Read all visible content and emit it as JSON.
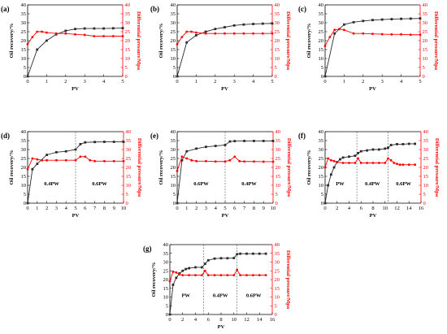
{
  "colors": {
    "recovery": "#2b2b2b",
    "pressure": "#ff0000",
    "divider": "#555555"
  },
  "chart_data": [
    {
      "type": "line",
      "panel_label": "(a)",
      "xlabel": "PV",
      "ylabel": "Oil recovery/%",
      "y2label": "Differential pressure/Mpa",
      "xlim": [
        0,
        5
      ],
      "xticks": [
        0,
        1,
        2,
        3,
        4,
        5
      ],
      "ylim": [
        0,
        40
      ],
      "yticks": [
        0,
        5,
        10,
        15,
        20,
        25,
        30,
        35,
        40
      ],
      "y2lim": [
        0,
        40
      ],
      "y2ticks": [
        0,
        5,
        10,
        15,
        20,
        25,
        30,
        35,
        40
      ],
      "dividers": [],
      "stage_labels": [],
      "series": [
        {
          "axis": "left",
          "color": "#2b2b2b",
          "marker": "square",
          "x": [
            0,
            0.5,
            1,
            1.5,
            2,
            2.5,
            3,
            3.5,
            4,
            4.5,
            5
          ],
          "y": [
            0,
            15,
            20,
            23.5,
            25.5,
            26.5,
            26.8,
            26.8,
            26.8,
            26.9,
            27
          ]
        },
        {
          "axis": "right",
          "color": "#ff0000",
          "marker": "circle",
          "x": [
            0,
            0.25,
            0.5,
            0.75,
            1,
            1.5,
            2,
            2.5,
            3,
            3.5,
            4,
            4.5,
            5
          ],
          "y": [
            18,
            22,
            25,
            25,
            24.5,
            24,
            24,
            23.5,
            23.2,
            22.5,
            22.5,
            22.5,
            22.5
          ]
        }
      ]
    },
    {
      "type": "line",
      "panel_label": "(b)",
      "xlabel": "PV",
      "ylabel": "Oil recovery/%",
      "y2label": "Differential pressure/Mpa",
      "xlim": [
        0,
        5
      ],
      "xticks": [
        0,
        1,
        2,
        3,
        4,
        5
      ],
      "ylim": [
        0,
        40
      ],
      "yticks": [
        0,
        5,
        10,
        15,
        20,
        25,
        30,
        35,
        40
      ],
      "y2lim": [
        0,
        40
      ],
      "y2ticks": [
        0,
        5,
        10,
        15,
        20,
        25,
        30,
        35,
        40
      ],
      "dividers": [],
      "stage_labels": [],
      "series": [
        {
          "axis": "left",
          "color": "#2b2b2b",
          "marker": "square",
          "x": [
            0,
            0.5,
            1,
            1.5,
            2,
            2.5,
            3,
            3.5,
            4,
            4.5,
            5
          ],
          "y": [
            0,
            19,
            23,
            25,
            26.5,
            27.5,
            28.5,
            29,
            29.3,
            29.5,
            29.6
          ]
        },
        {
          "axis": "right",
          "color": "#ff0000",
          "marker": "circle",
          "x": [
            0,
            0.25,
            0.5,
            0.75,
            1,
            1.5,
            2,
            2.5,
            3,
            3.5,
            4,
            4.5,
            5
          ],
          "y": [
            18,
            22,
            25,
            25,
            24.5,
            24,
            24,
            24,
            24,
            24,
            24,
            24,
            24
          ]
        }
      ]
    },
    {
      "type": "line",
      "panel_label": "(c)",
      "xlabel": "PV",
      "ylabel": "Oil recovery/%",
      "y2label": "Differential pressure/Mpa",
      "xlim": [
        0,
        5
      ],
      "xticks": [
        0,
        1,
        2,
        3,
        4,
        5
      ],
      "ylim": [
        0,
        40
      ],
      "yticks": [
        0,
        5,
        10,
        15,
        20,
        25,
        30,
        35,
        40
      ],
      "y2lim": [
        0,
        40
      ],
      "y2ticks": [
        0,
        5,
        10,
        15,
        20,
        25,
        30,
        35,
        40
      ],
      "dividers": [],
      "stage_labels": [],
      "series": [
        {
          "axis": "left",
          "color": "#2b2b2b",
          "marker": "square",
          "x": [
            0,
            0.5,
            1,
            1.5,
            2,
            2.5,
            3,
            3.5,
            4,
            4.5,
            5
          ],
          "y": [
            0,
            24,
            29,
            30.3,
            31,
            31.5,
            31.8,
            32,
            32.2,
            32.3,
            32.4
          ]
        },
        {
          "axis": "right",
          "color": "#ff0000",
          "marker": "circle",
          "x": [
            0,
            0.25,
            0.5,
            0.75,
            1,
            1.5,
            2,
            2.5,
            3,
            3.5,
            4,
            4.5,
            5
          ],
          "y": [
            17,
            22,
            26,
            26.5,
            26,
            24,
            24,
            23.8,
            23.6,
            23.5,
            23.5,
            23.3,
            23.3
          ]
        }
      ]
    },
    {
      "type": "line",
      "panel_label": "(d)",
      "xlabel": "PV",
      "ylabel": "Oil recovery/%",
      "y2label": "Differential pressure/Mpa",
      "xlim": [
        0,
        10
      ],
      "xticks": [
        0,
        1,
        2,
        3,
        4,
        5,
        6,
        7,
        8,
        9,
        10
      ],
      "ylim": [
        0,
        40
      ],
      "yticks": [
        0,
        5,
        10,
        15,
        20,
        25,
        30,
        35,
        40
      ],
      "y2lim": [
        0,
        40
      ],
      "y2ticks": [
        0,
        5,
        10,
        15,
        20,
        25,
        30,
        35,
        40
      ],
      "dividers": [
        5
      ],
      "stage_labels": [
        {
          "text": "0.4PW",
          "x": 2.5,
          "y": 10
        },
        {
          "text": "0.6PW",
          "x": 7.5,
          "y": 10
        }
      ],
      "series": [
        {
          "axis": "left",
          "color": "#2b2b2b",
          "marker": "square",
          "x": [
            0,
            0.5,
            1,
            2,
            3,
            4,
            5,
            5.5,
            6,
            7,
            8,
            9,
            10
          ],
          "y": [
            0,
            19,
            22,
            27,
            28.5,
            29,
            30,
            33,
            34,
            34.2,
            34.3,
            34.3,
            34.3
          ]
        },
        {
          "axis": "right",
          "color": "#ff0000",
          "marker": "circle",
          "x": [
            0,
            0.5,
            1,
            1.5,
            2,
            3,
            4,
            5,
            5.5,
            6,
            6.5,
            7,
            8,
            9,
            10
          ],
          "y": [
            19,
            25,
            24.5,
            24,
            24,
            24,
            24,
            24,
            26,
            26,
            24,
            23.5,
            23.5,
            23.5,
            23.5
          ]
        }
      ]
    },
    {
      "type": "line",
      "panel_label": "(e)",
      "xlabel": "PV",
      "ylabel": "Oil recovery/%",
      "y2label": "Differential pressure/Mpa",
      "xlim": [
        0,
        10
      ],
      "xticks": [
        0,
        1,
        2,
        3,
        4,
        5,
        6,
        7,
        8,
        9,
        10
      ],
      "ylim": [
        0,
        40
      ],
      "yticks": [
        0,
        5,
        10,
        15,
        20,
        25,
        30,
        35,
        40
      ],
      "y2lim": [
        0,
        40
      ],
      "y2ticks": [
        0,
        5,
        10,
        15,
        20,
        25,
        30,
        35,
        40
      ],
      "dividers": [
        5
      ],
      "stage_labels": [
        {
          "text": "0.6PW",
          "x": 2.5,
          "y": 10
        },
        {
          "text": "0.4PW",
          "x": 7.5,
          "y": 10
        }
      ],
      "series": [
        {
          "axis": "left",
          "color": "#2b2b2b",
          "marker": "square",
          "x": [
            0,
            0.5,
            1,
            2,
            3,
            4,
            5,
            5.5,
            6,
            7,
            8,
            9,
            10
          ],
          "y": [
            0,
            24,
            29,
            30.5,
            31.5,
            32,
            32.5,
            34.5,
            34.7,
            34.8,
            34.8,
            34.8,
            34.8
          ]
        },
        {
          "axis": "right",
          "color": "#ff0000",
          "marker": "circle",
          "x": [
            0,
            0.5,
            1,
            1.5,
            2,
            3,
            4,
            5,
            5.5,
            6,
            6.5,
            7,
            8,
            9,
            10
          ],
          "y": [
            18,
            26,
            25,
            24,
            23.5,
            23.5,
            23.3,
            23.3,
            24,
            26,
            23.5,
            23.3,
            23.3,
            23.2,
            23.2
          ]
        }
      ]
    },
    {
      "type": "line",
      "panel_label": "(f)",
      "xlabel": "PV",
      "ylabel": "Oil recovery/%",
      "y2label": "Differential pressure/Mpa",
      "xlim": [
        0,
        16
      ],
      "xticks": [
        0,
        2,
        4,
        6,
        8,
        10,
        12,
        14,
        16
      ],
      "ylim": [
        0,
        40
      ],
      "yticks": [
        0,
        5,
        10,
        15,
        20,
        25,
        30,
        35,
        40
      ],
      "y2lim": [
        0,
        40
      ],
      "y2ticks": [
        0,
        5,
        10,
        15,
        20,
        25,
        30,
        35,
        40
      ],
      "dividers": [
        5.3,
        10.5
      ],
      "stage_labels": [
        {
          "text": "PW",
          "x": 2.5,
          "y": 10
        },
        {
          "text": "0.4PW",
          "x": 7.9,
          "y": 10
        },
        {
          "text": "0.6PW",
          "x": 13.1,
          "y": 10
        }
      ],
      "series": [
        {
          "axis": "left",
          "color": "#2b2b2b",
          "marker": "square",
          "x": [
            0,
            0.5,
            1,
            1.5,
            2,
            2.5,
            3,
            4,
            5,
            5.5,
            6,
            7,
            8,
            9,
            10,
            10.5,
            11,
            12,
            13,
            14,
            15
          ],
          "y": [
            0,
            10,
            16,
            20,
            23,
            24.5,
            25.5,
            26,
            26.5,
            28,
            29,
            29.5,
            30,
            30,
            30.5,
            31,
            32.5,
            33,
            33,
            33.2,
            33.2
          ]
        },
        {
          "axis": "right",
          "color": "#ff0000",
          "marker": "circle",
          "x": [
            0,
            0.5,
            1,
            1.5,
            2,
            3,
            4,
            5,
            5.5,
            6,
            7,
            8,
            9,
            10,
            10.5,
            11,
            11.5,
            12,
            12.5,
            13,
            14,
            15
          ],
          "y": [
            20,
            25,
            24,
            23.5,
            23,
            22.5,
            22.5,
            22.5,
            25,
            22.5,
            22.5,
            22.5,
            22.5,
            22.5,
            25,
            24,
            22.5,
            22,
            21.5,
            21.5,
            21.5,
            21.5
          ]
        }
      ]
    },
    {
      "type": "line",
      "panel_label": "(g)",
      "xlabel": "PV",
      "ylabel": "Oil recovery/%",
      "y2label": "Differential pressure/Mpa",
      "xlim": [
        0,
        16
      ],
      "xticks": [
        0,
        2,
        4,
        6,
        8,
        10,
        12,
        14,
        16
      ],
      "ylim": [
        0,
        40
      ],
      "yticks": [
        0,
        5,
        10,
        15,
        20,
        25,
        30,
        35,
        40
      ],
      "y2lim": [
        0,
        40
      ],
      "y2ticks": [
        0,
        5,
        10,
        15,
        20,
        25,
        30,
        35,
        40
      ],
      "dividers": [
        5.3,
        10.5
      ],
      "stage_labels": [
        {
          "text": "PW",
          "x": 2.5,
          "y": 10
        },
        {
          "text": "0.4PW",
          "x": 7.9,
          "y": 10
        },
        {
          "text": "0.6PW",
          "x": 13.1,
          "y": 10
        }
      ],
      "series": [
        {
          "axis": "left",
          "color": "#2b2b2b",
          "marker": "square",
          "x": [
            0,
            0.5,
            1,
            1.5,
            2,
            2.5,
            3,
            4,
            5,
            5.5,
            6,
            7,
            8,
            9,
            10,
            10.5,
            11,
            12,
            13,
            14,
            15
          ],
          "y": [
            0,
            17,
            21,
            23.5,
            25,
            26,
            26.5,
            27,
            27,
            29,
            31,
            32,
            32.2,
            32.2,
            32.3,
            34.5,
            34.8,
            34.8,
            34.8,
            34.8,
            34.8
          ]
        },
        {
          "axis": "right",
          "color": "#ff0000",
          "marker": "circle",
          "x": [
            0,
            0.5,
            1,
            1.5,
            2,
            3,
            4,
            5,
            5.5,
            6,
            7,
            8,
            9,
            10,
            10.5,
            11,
            12,
            13,
            14,
            15
          ],
          "y": [
            19,
            24.5,
            24,
            23,
            22.5,
            22.5,
            22.5,
            22.5,
            25,
            22.5,
            22.5,
            22.5,
            22.5,
            22.5,
            25.5,
            22.5,
            22.5,
            22.5,
            22.5,
            22.5
          ]
        }
      ]
    }
  ]
}
